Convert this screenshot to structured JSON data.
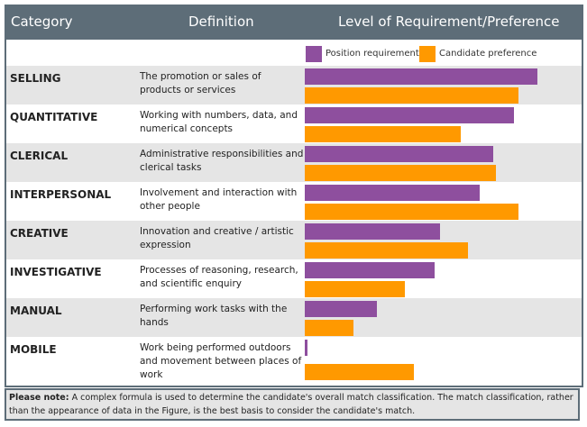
{
  "header": {
    "category": "Category",
    "definition": "Definition",
    "level": "Level of Requirement/Preference"
  },
  "colors": {
    "position": "#8e4f9e",
    "candidate": "#ff9900",
    "header_bg": "#5d6d78",
    "band": "#e5e5e5"
  },
  "chart_data": {
    "type": "bar",
    "orientation": "horizontal",
    "title": "Level of Requirement/Preference",
    "categories": [
      "SELLING",
      "QUANTITATIVE",
      "CLERICAL",
      "INTERPERSONAL",
      "CREATIVE",
      "INVESTIGATIVE",
      "MANUAL",
      "MOBILE"
    ],
    "definitions": [
      "The promotion or sales of products or services",
      "Working with numbers, data, and numerical concepts",
      "Administrative responsibilities and clerical tasks",
      "Involvement and interaction with other people",
      "Innovation and creative / artistic expression",
      "Processes of reasoning, research, and scientific enquiry",
      "Performing work tasks with the hands",
      "Work being performed outdoors and movement between places of work"
    ],
    "series": [
      {
        "name": "Position requirement",
        "color": "#8e4f9e",
        "values": [
          100,
          90,
          81,
          75,
          58,
          56,
          31,
          1
        ]
      },
      {
        "name": "Candidate preference",
        "color": "#ff9900",
        "values": [
          92,
          67,
          82,
          92,
          70,
          43,
          21,
          47
        ]
      }
    ],
    "xlim": [
      0,
      100
    ],
    "legend": "top-right"
  },
  "note": {
    "label": "Please note:",
    "text": " A complex formula is used to determine the candidate's overall match classification. The match classification, rather than the appearance of data in the Figure, is the best basis to consider the candidate's match."
  }
}
